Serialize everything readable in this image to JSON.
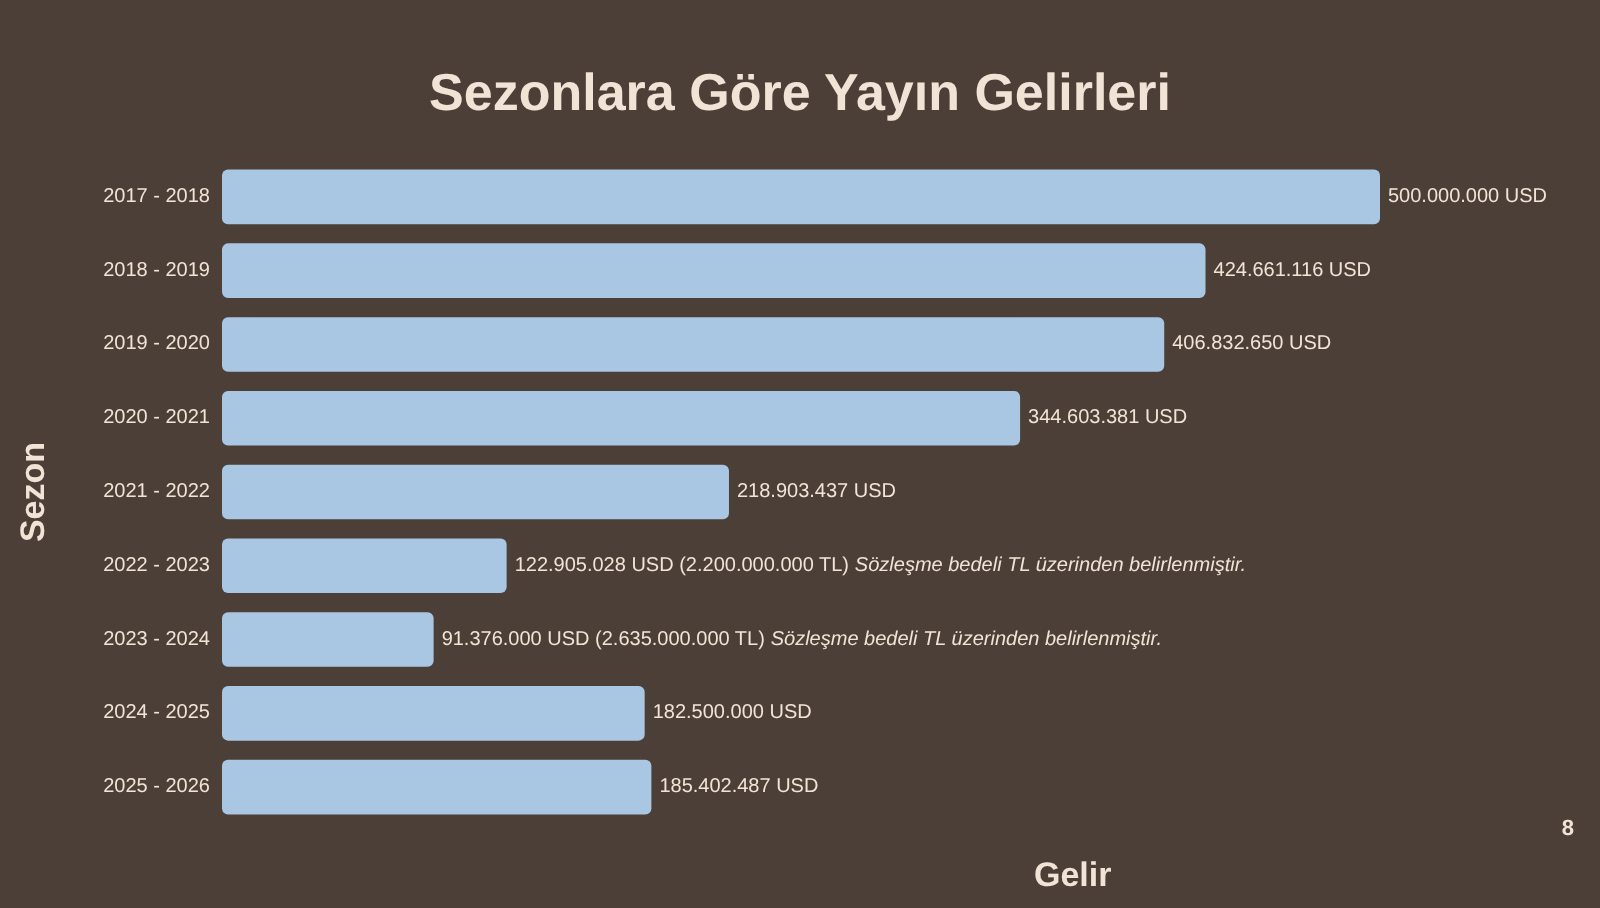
{
  "chart_data": {
    "type": "bar",
    "orientation": "horizontal",
    "title": "Sezonlara Göre Yayın Gelirleri",
    "xlabel": "Gelir",
    "ylabel": "Sezon",
    "categories": [
      "2017 - 2018",
      "2018 - 2019",
      "2019 - 2020",
      "2020 - 2021",
      "2021 - 2022",
      "2022 - 2023",
      "2023 - 2024",
      "2024 - 2025",
      "2025 - 2026"
    ],
    "values": [
      500000000,
      424661116,
      406832650,
      344603381,
      218903437,
      122905028,
      91376000,
      182500000,
      185402487
    ],
    "value_labels": [
      "500.000.000 USD",
      "424.661.116 USD",
      "406.832.650 USD",
      "344.603.381 USD",
      "218.903.437 USD",
      "122.905.028 USD (2.200.000.000 TL) Sözleşme bedeli TL üzerinden belirlenmiştir.",
      "91.376.000 USD (2.635.000.000 TL) Sözleşme bedeli TL üzerinden belirlenmiştir.",
      "182.500.000 USD",
      "185.402.487 USD"
    ],
    "color": "#a9c6e3",
    "annotations": [
      "8"
    ]
  }
}
